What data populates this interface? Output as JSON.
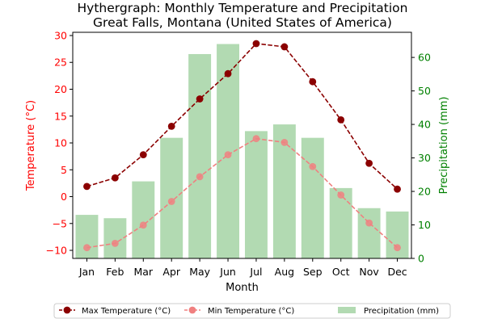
{
  "chart_data": {
    "type": "bar+line",
    "title": "Hythergraph: Monthly Temperature and Precipitation",
    "subtitle": "Great Falls, Montana (United States of America)",
    "xlabel": "Month",
    "ylabel_left": "Temperature (°C)",
    "ylabel_right": "Precipitation (mm)",
    "categories": [
      "Jan",
      "Feb",
      "Mar",
      "Apr",
      "May",
      "Jun",
      "Jul",
      "Aug",
      "Sep",
      "Oct",
      "Nov",
      "Dec"
    ],
    "ylim_left": [
      -11.5,
      30.6
    ],
    "ylim_right": [
      0,
      67.5
    ],
    "yticks_left": [
      -10,
      -5,
      0,
      5,
      10,
      15,
      20,
      25,
      30
    ],
    "yticks_right": [
      0,
      10,
      20,
      30,
      40,
      50,
      60
    ],
    "grid": false,
    "legend_position": "bottom-center",
    "series": [
      {
        "name": "Max Temperature (°C)",
        "axis": "left",
        "kind": "line",
        "color": "#8b0000",
        "linestyle": "dashed",
        "values": [
          1.9,
          3.5,
          7.8,
          13.1,
          18.2,
          22.9,
          28.5,
          27.9,
          21.4,
          14.3,
          6.2,
          1.4
        ]
      },
      {
        "name": "Min Temperature (°C)",
        "axis": "left",
        "kind": "line",
        "color": "#f08080",
        "linestyle": "dashed",
        "values": [
          -9.5,
          -8.7,
          -5.3,
          -0.9,
          3.7,
          7.8,
          10.8,
          10.1,
          5.6,
          0.3,
          -4.9,
          -9.5
        ]
      },
      {
        "name": "Precipitation (mm)",
        "axis": "right",
        "kind": "bar",
        "color": "#b2dab2",
        "values": [
          13,
          12,
          23,
          36,
          61,
          64,
          38,
          40,
          36,
          21,
          15,
          14
        ]
      }
    ],
    "colors": {
      "left_axis": "#ff0000",
      "right_axis": "#008000",
      "bar_face": "#b2dab2"
    }
  }
}
